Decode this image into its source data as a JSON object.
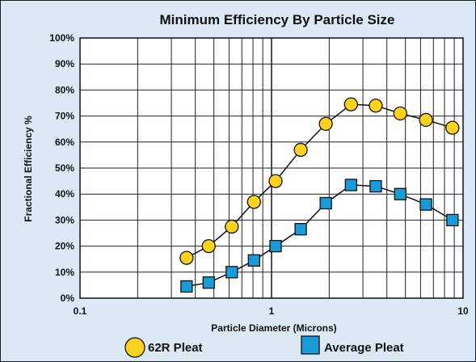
{
  "chart_data": {
    "type": "scatter",
    "title": "Minimum Efficiency By Particle Size",
    "xlabel": "Particle Diameter (Microns)",
    "ylabel": "Fractional Efficiency %",
    "xscale": "log",
    "xlim": [
      0.1,
      10
    ],
    "ylim": [
      0,
      100
    ],
    "x_tick_labels": [
      "0.1",
      "1",
      "10"
    ],
    "y_tick_labels": [
      "0%",
      "10%",
      "20%",
      "30%",
      "40%",
      "50%",
      "60%",
      "70%",
      "80%",
      "90%",
      "100%"
    ],
    "legend_position": "bottom",
    "series": [
      {
        "name": "62R Pleat",
        "marker": "circle",
        "color": "#ffd21f",
        "x": [
          0.36,
          0.47,
          0.62,
          0.81,
          1.05,
          1.42,
          1.92,
          2.6,
          3.5,
          4.7,
          6.4,
          8.8
        ],
        "y": [
          15.5,
          20,
          27.5,
          37,
          45,
          57,
          67,
          74.5,
          74,
          71,
          68.5,
          65.5
        ]
      },
      {
        "name": "Average Pleat",
        "marker": "square",
        "color": "#1a9ad6",
        "x": [
          0.36,
          0.47,
          0.62,
          0.81,
          1.05,
          1.42,
          1.92,
          2.6,
          3.5,
          4.7,
          6.4,
          8.8
        ],
        "y": [
          4.5,
          6,
          10,
          14.5,
          20,
          26.5,
          36.5,
          43.5,
          43,
          40,
          36,
          30
        ]
      }
    ]
  }
}
